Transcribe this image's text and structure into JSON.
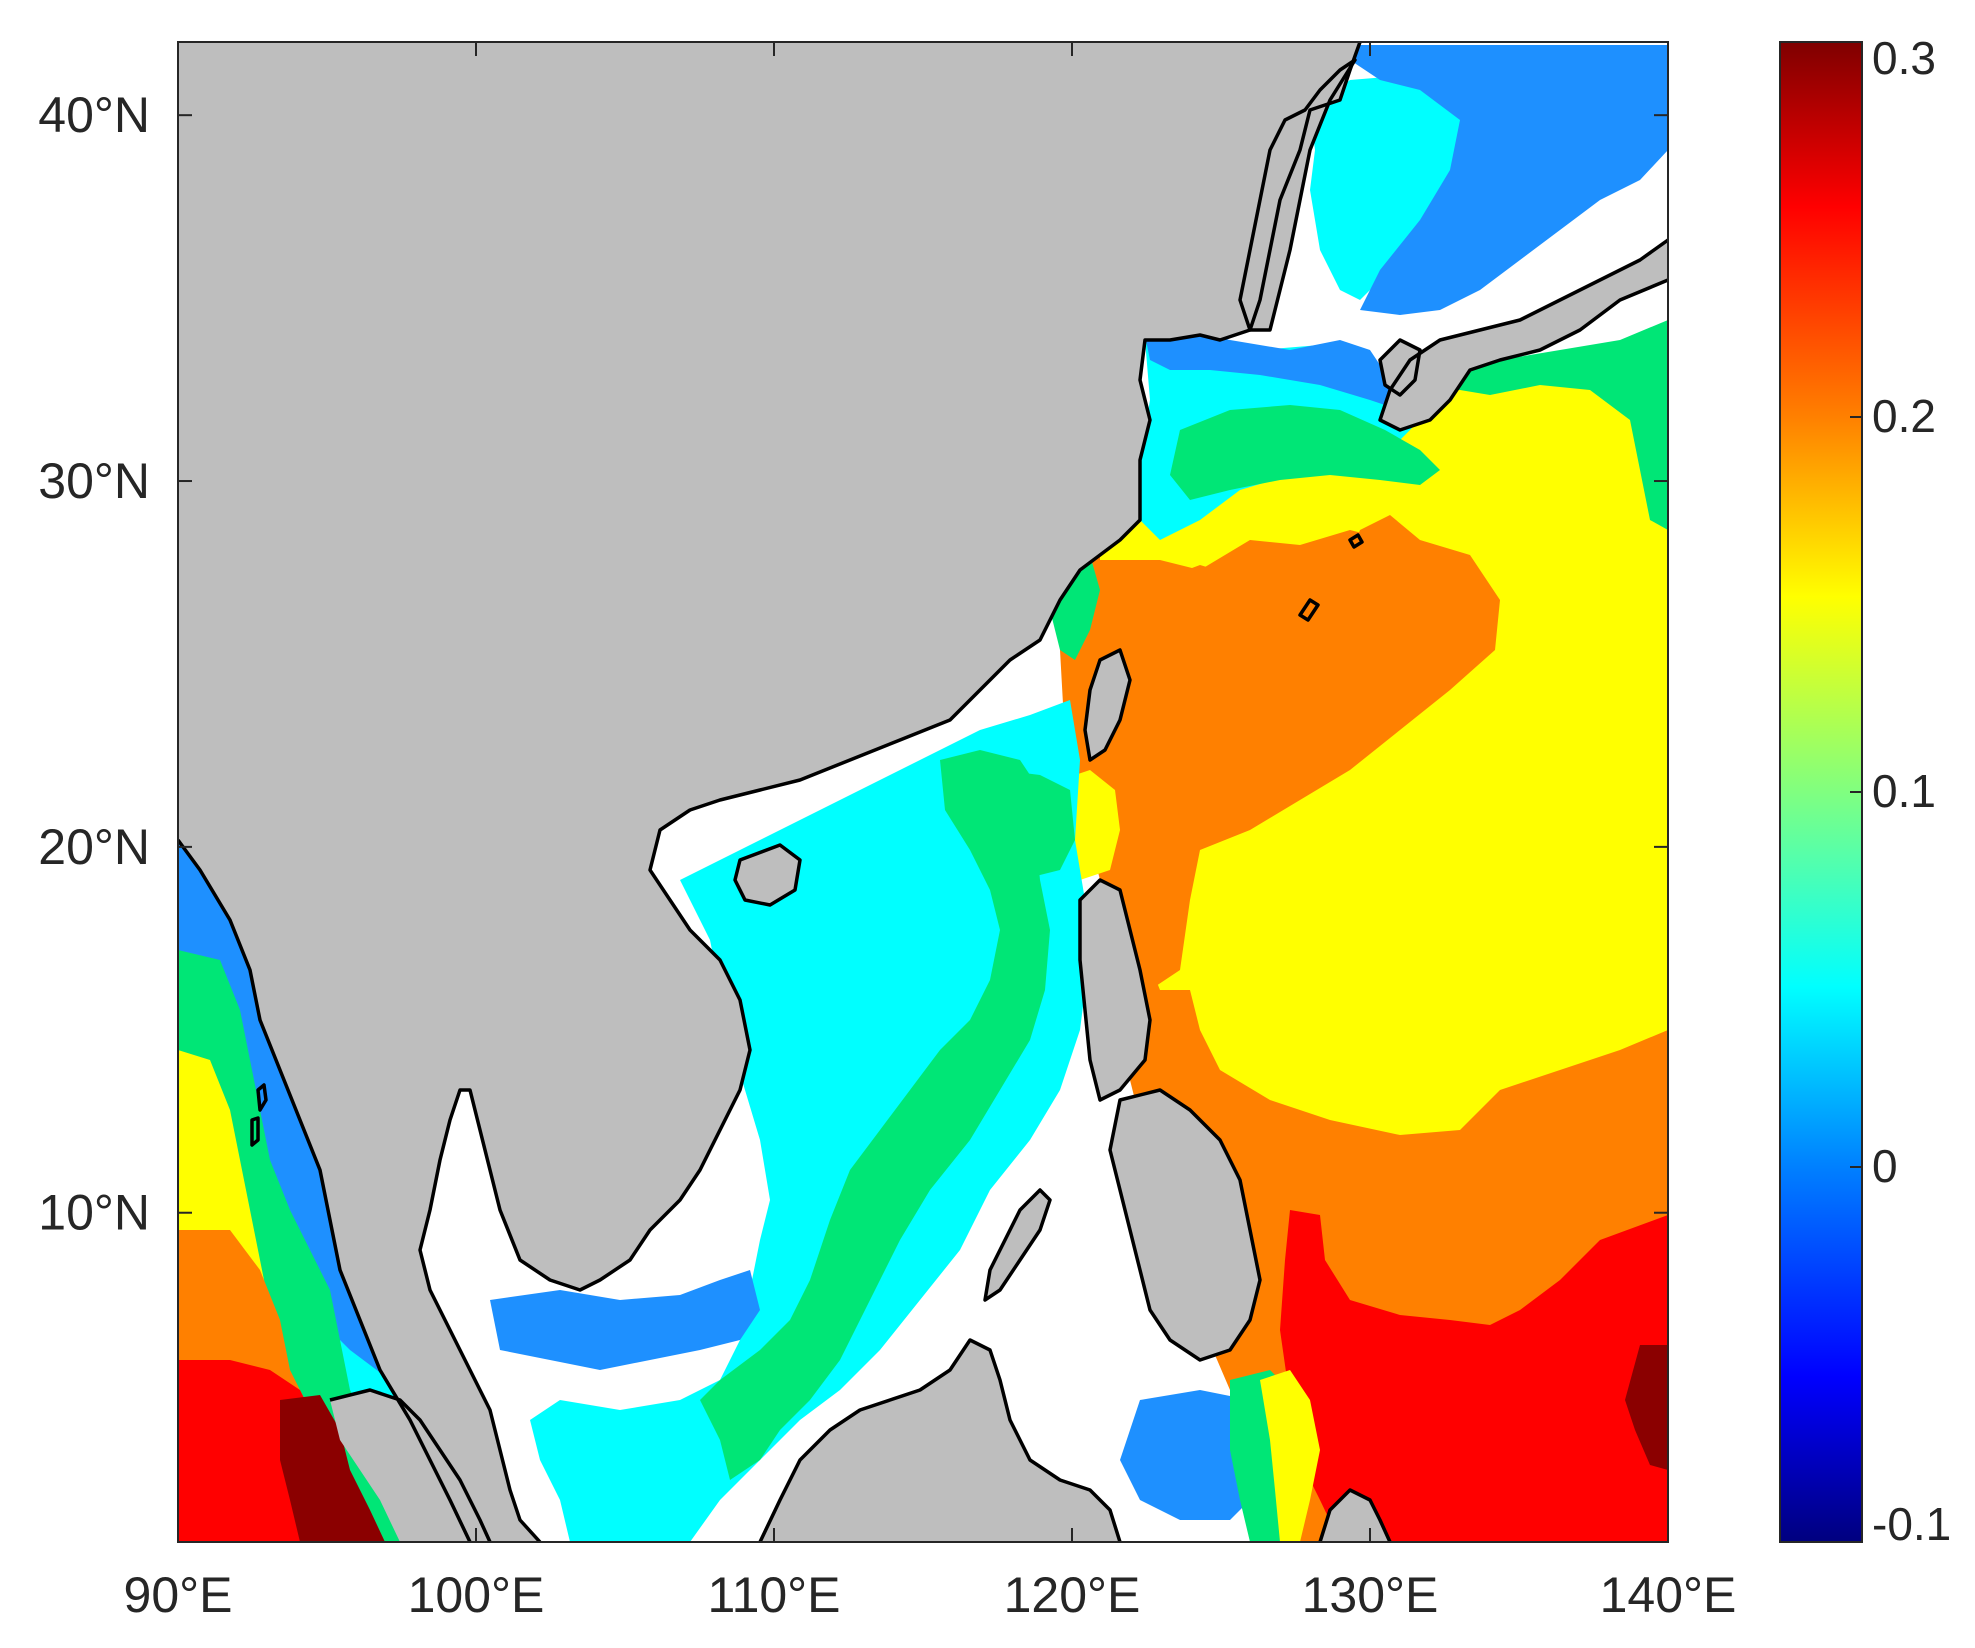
{
  "map": {
    "lon_ticks": [
      "90°E",
      "100°E",
      "110°E",
      "120°E",
      "130°E",
      "140°E"
    ],
    "lat_ticks": [
      "10°N",
      "20°N",
      "30°N",
      "40°N"
    ],
    "extent": {
      "lon": [
        90,
        140
      ],
      "lat": [
        1,
        42
      ]
    },
    "land_color": "#bebebe",
    "no_data_color": "#ffffff",
    "coast_color": "#000000"
  },
  "colorbar": {
    "ticks": [
      "0.3",
      "0.2",
      "0.1",
      "0",
      "-0.1"
    ],
    "range": [
      -0.1,
      0.3
    ],
    "colormap": "jet",
    "colors": [
      "#7f0000",
      "#ff0000",
      "#ff8000",
      "#ffff00",
      "#80ff80",
      "#00ffff",
      "#0080ff",
      "#0000ff",
      "#00007f"
    ]
  },
  "colors": {
    "dark_red": "#8b0000",
    "red": "#ff0000",
    "orange": "#ff8000",
    "yellow": "#ffff00",
    "green": "#00e676",
    "cyan": "#00ffff",
    "light_blue": "#1e90ff",
    "deep_blue": "#0000ff"
  }
}
